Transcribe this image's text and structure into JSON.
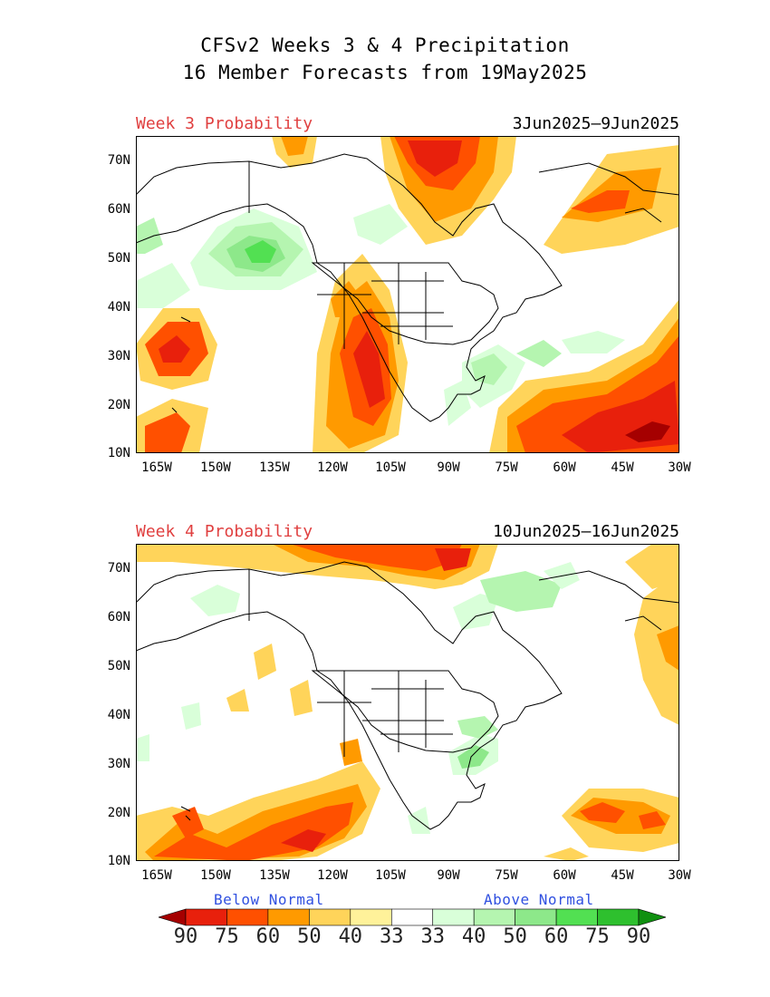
{
  "header": {
    "title_line1": "CFSv2 Weeks 3 & 4 Precipitation",
    "title_line2": "16 Member Forecasts from 19May2025"
  },
  "panels": [
    {
      "label": "Week 3 Probability",
      "dates": "3Jun2025—9Jun2025"
    },
    {
      "label": "Week 4 Probability",
      "dates": "10Jun2025—16Jun2025"
    }
  ],
  "axes": {
    "lat_labels": [
      "70N",
      "60N",
      "50N",
      "40N",
      "30N",
      "20N",
      "10N"
    ],
    "lon_labels": [
      "165W",
      "150W",
      "135W",
      "120W",
      "105W",
      "90W",
      "75W",
      "60W",
      "45W",
      "30W"
    ]
  },
  "legend": {
    "below_label": "Below Normal",
    "above_label": "Above Normal",
    "levels": [
      "90",
      "75",
      "60",
      "50",
      "40",
      "33",
      "33",
      "40",
      "50",
      "60",
      "75",
      "90"
    ],
    "colors": [
      "#a50000",
      "#e8200c",
      "#ff5000",
      "#ff9a00",
      "#ffd45a",
      "#fff29a",
      "#ffffff",
      "#d9ffd9",
      "#b5f5b0",
      "#8de88a",
      "#52e052",
      "#2ec02e",
      "#109010"
    ]
  },
  "chart_data": {
    "type": "map",
    "region": "North America",
    "lat_range": [
      10,
      75
    ],
    "lon_range": [
      -170,
      -30
    ],
    "variable": "Precipitation probability"
  }
}
